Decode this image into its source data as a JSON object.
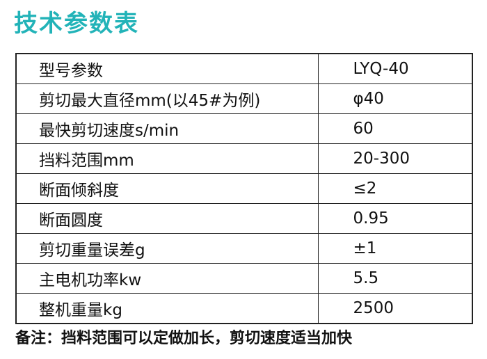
{
  "header": {
    "title": "技术参数表"
  },
  "table": {
    "rows": [
      [
        "型号参数",
        "LYQ-40"
      ],
      [
        "剪切最大直径mm(以45#为例)",
        "φ40"
      ],
      [
        "最快剪切速度s/min",
        "60"
      ],
      [
        "挡料范围mm",
        "20-300"
      ],
      [
        "断面倾斜度",
        "≤2"
      ],
      [
        "断面圆度",
        "0.95"
      ],
      [
        "剪切重量误差g",
        "±1"
      ],
      [
        "主电机功率kw",
        "5.5"
      ],
      [
        "整机重量kg",
        "2500"
      ]
    ]
  },
  "note": "备注：挡料范围可以定做加长，剪切速度适当加快"
}
